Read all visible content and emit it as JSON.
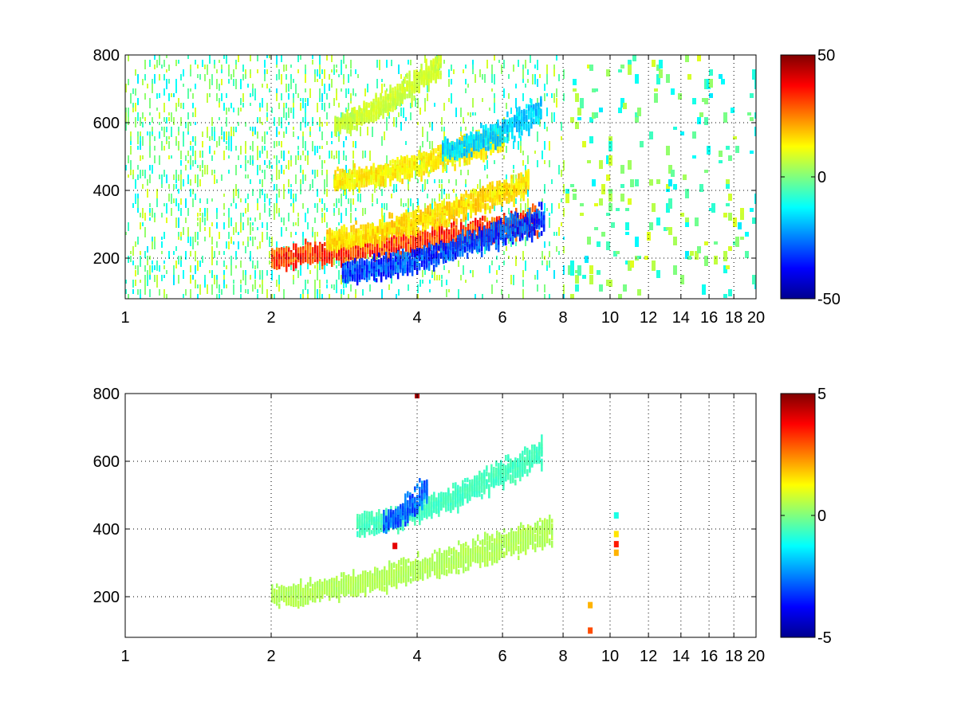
{
  "chart_data": [
    {
      "type": "heatmap",
      "colormap": "jet",
      "grid": true,
      "x_scale": "log",
      "xlim": [
        1,
        20
      ],
      "ylim": [
        80,
        800
      ],
      "x_ticks": [
        1,
        2,
        4,
        6,
        8,
        10,
        12,
        14,
        16,
        18,
        20
      ],
      "x_tick_labels": [
        "1",
        "2",
        "4",
        "6",
        "8",
        "10",
        "12",
        "14",
        "16",
        "18",
        "20"
      ],
      "y_ticks": [
        200,
        400,
        600,
        800
      ],
      "y_tick_labels": [
        "200",
        "400",
        "600",
        "800"
      ],
      "colorbar": {
        "clim": [
          -50,
          50
        ],
        "tick_labels": [
          "50",
          "0",
          "-50"
        ],
        "ticks": [
          50,
          0,
          -50
        ]
      },
      "bands": [
        {
          "x_range": [
            2.0,
            7.1
          ],
          "y_start": 205,
          "y_end": 315,
          "value": 42
        },
        {
          "x_range": [
            2.8,
            7.3
          ],
          "y_start": 160,
          "y_end": 320,
          "value": -40
        },
        {
          "x_range": [
            2.6,
            6.8
          ],
          "y_start": 255,
          "y_end": 430,
          "value": 20
        },
        {
          "x_range": [
            2.7,
            6.0
          ],
          "y_start": 430,
          "y_end": 560,
          "value": 18
        },
        {
          "x_range": [
            4.5,
            7.2
          ],
          "y_start": 520,
          "y_end": 640,
          "value": -22
        },
        {
          "x_range": [
            2.7,
            4.5
          ],
          "y_start": 600,
          "y_end": 780,
          "value": 10
        }
      ],
      "background_noise": {
        "x_range": [
          1,
          20
        ],
        "values_typical": [
          -15,
          10
        ]
      }
    },
    {
      "type": "heatmap",
      "colormap": "jet",
      "grid": true,
      "x_scale": "log",
      "xlim": [
        1,
        20
      ],
      "ylim": [
        80,
        800
      ],
      "x_ticks": [
        1,
        2,
        4,
        6,
        8,
        10,
        12,
        14,
        16,
        18,
        20
      ],
      "x_tick_labels": [
        "1",
        "2",
        "4",
        "6",
        "8",
        "10",
        "12",
        "14",
        "16",
        "18",
        "20"
      ],
      "y_ticks": [
        200,
        400,
        600,
        800
      ],
      "y_tick_labels": [
        "200",
        "400",
        "600",
        "800"
      ],
      "colorbar": {
        "clim": [
          -5,
          5
        ],
        "tick_labels": [
          "5",
          "0",
          "-5"
        ],
        "ticks": [
          5,
          0,
          -5
        ]
      },
      "bands": [
        {
          "x_range": [
            2.0,
            7.6
          ],
          "y_start": 205,
          "y_end": 400,
          "value": 0.6
        },
        {
          "x_range": [
            3.0,
            7.2
          ],
          "y_start": 410,
          "y_end": 630,
          "value": -0.8
        },
        {
          "x_range": [
            3.4,
            4.2
          ],
          "y_start": 420,
          "y_end": 520,
          "value": -3.5
        }
      ],
      "spots": [
        {
          "x": 10.3,
          "y": 440,
          "value": -1
        },
        {
          "x": 10.3,
          "y": 385,
          "value": 1.5
        },
        {
          "x": 10.3,
          "y": 355,
          "value": 3.5
        },
        {
          "x": 10.3,
          "y": 330,
          "value": 2
        },
        {
          "x": 9.1,
          "y": 175,
          "value": 2
        },
        {
          "x": 9.1,
          "y": 100,
          "value": 3
        },
        {
          "x": 4.0,
          "y": 795,
          "value": 4.5
        },
        {
          "x": 3.6,
          "y": 350,
          "value": 4
        }
      ]
    }
  ]
}
